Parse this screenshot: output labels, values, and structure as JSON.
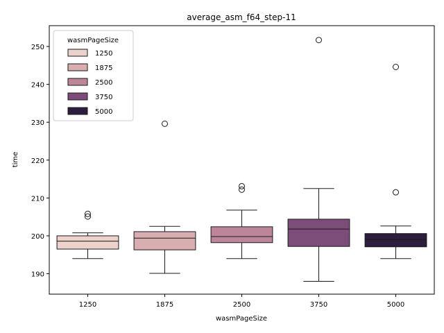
{
  "chart_data": {
    "type": "box",
    "title": "average_asm_f64_step-11",
    "xlabel": "wasmPageSize",
    "ylabel": "time",
    "ylim": [
      184.6,
      255.5
    ],
    "yticks": [
      190,
      200,
      210,
      220,
      230,
      240,
      250
    ],
    "categories": [
      "1250",
      "1875",
      "2500",
      "3750",
      "5000"
    ],
    "grid": false,
    "legend": {
      "title": "wasmPageSize",
      "placement": "top-left",
      "entries": [
        "1250",
        "1875",
        "2500",
        "3750",
        "5000"
      ]
    },
    "series": [
      {
        "category": "1250",
        "color": "#ebd2cb",
        "whisker_low": 194.0,
        "q1": 196.5,
        "median": 198.6,
        "q3": 200.0,
        "whisker_high": 200.8,
        "outliers": [
          205.1,
          205.8
        ]
      },
      {
        "category": "1875",
        "color": "#d8aeb0",
        "whisker_low": 190.1,
        "q1": 196.3,
        "median": 199.4,
        "q3": 201.1,
        "whisker_high": 202.5,
        "outliers": [
          229.6
        ]
      },
      {
        "category": "2500",
        "color": "#bd8599",
        "whisker_low": 194.0,
        "q1": 198.2,
        "median": 199.8,
        "q3": 202.4,
        "whisker_high": 206.8,
        "outliers": [
          212.2,
          213.1
        ]
      },
      {
        "category": "3750",
        "color": "#7c4d78",
        "whisker_low": 188.0,
        "q1": 197.2,
        "median": 201.8,
        "q3": 204.4,
        "whisker_high": 212.5,
        "outliers": [
          251.7
        ]
      },
      {
        "category": "5000",
        "color": "#2d1e3e",
        "whisker_low": 194.0,
        "q1": 197.1,
        "median": 199.0,
        "q3": 200.6,
        "whisker_high": 202.6,
        "outliers": [
          211.5,
          244.6
        ]
      }
    ]
  }
}
